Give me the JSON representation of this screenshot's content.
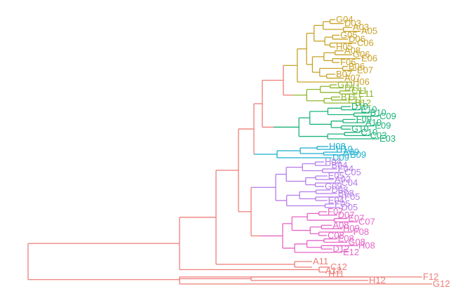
{
  "clusters": [
    {
      "id": "gold",
      "color": "#C9A227",
      "leaves": [
        "G04",
        "D03",
        "A03",
        "A05",
        "G05",
        "D06",
        "C06",
        "H05",
        "A08",
        "G06",
        "E06",
        "F06",
        "B06",
        "E07",
        "B07",
        "A07",
        "H06"
      ]
    },
    {
      "id": "lime",
      "color": "#8FB72E",
      "leaves": [
        "G11",
        "D11",
        "C11",
        "E11",
        "B11",
        "F11",
        "B12"
      ]
    },
    {
      "id": "green",
      "color": "#1DB37A",
      "leaves": [
        "D10",
        "E10",
        "B10",
        "C09",
        "F09",
        "A10",
        "E09",
        "G10",
        "C10",
        "C03",
        "E03"
      ]
    },
    {
      "id": "cyan",
      "color": "#18AECF",
      "leaves": [
        "H08",
        "H10",
        "A09",
        "B09",
        "D09"
      ]
    },
    {
      "id": "purple",
      "color": "#B57BEA",
      "leaves": [
        "H04",
        "B04",
        "F04",
        "C05",
        "E05",
        "A02",
        "C04",
        "G09",
        "D08",
        "B08",
        "F05",
        "E04",
        "F05",
        "D05"
      ]
    },
    {
      "id": "pink",
      "color": "#E565C7",
      "leaves": [
        "F07",
        "D07",
        "E07",
        "C07",
        "A08",
        "H09",
        "F08",
        "C08",
        "E08",
        "G08",
        "H08",
        "D12",
        "E12"
      ]
    },
    {
      "id": "salmon",
      "color": "#EE7E78",
      "leaves": [
        "A11",
        "C12",
        "A12",
        "H11",
        "H12",
        "F12",
        "G12"
      ]
    }
  ],
  "leaf_labels": [
    "G04",
    "D03",
    "A03",
    "A05",
    "G05",
    "D06",
    "C06",
    "H05",
    "A08",
    "G06",
    "E06",
    "F06",
    "B06",
    "E07",
    "B07",
    "A07",
    "H06",
    "G11",
    "D11",
    "C11",
    "E11",
    "B11",
    "F11",
    "B12",
    "D10",
    "E10",
    "B10",
    "C09",
    "F09",
    "A10",
    "E09",
    "G10",
    "C10",
    "C03",
    "E03",
    "H08",
    "H10",
    "A09",
    "B09",
    "D09",
    "H04",
    "B04",
    "F04",
    "C05",
    "E05",
    "A02",
    "C04",
    "G09",
    "D08",
    "B08",
    "F05",
    "E04",
    "F05",
    "D05",
    "F07",
    "D07",
    "E07",
    "C07",
    "A08",
    "H09",
    "F08",
    "C08",
    "E08",
    "G08",
    "H08",
    "D12",
    "E12",
    "A11",
    "C12",
    "A12",
    "H11",
    "H12",
    "F12",
    "G12"
  ]
}
